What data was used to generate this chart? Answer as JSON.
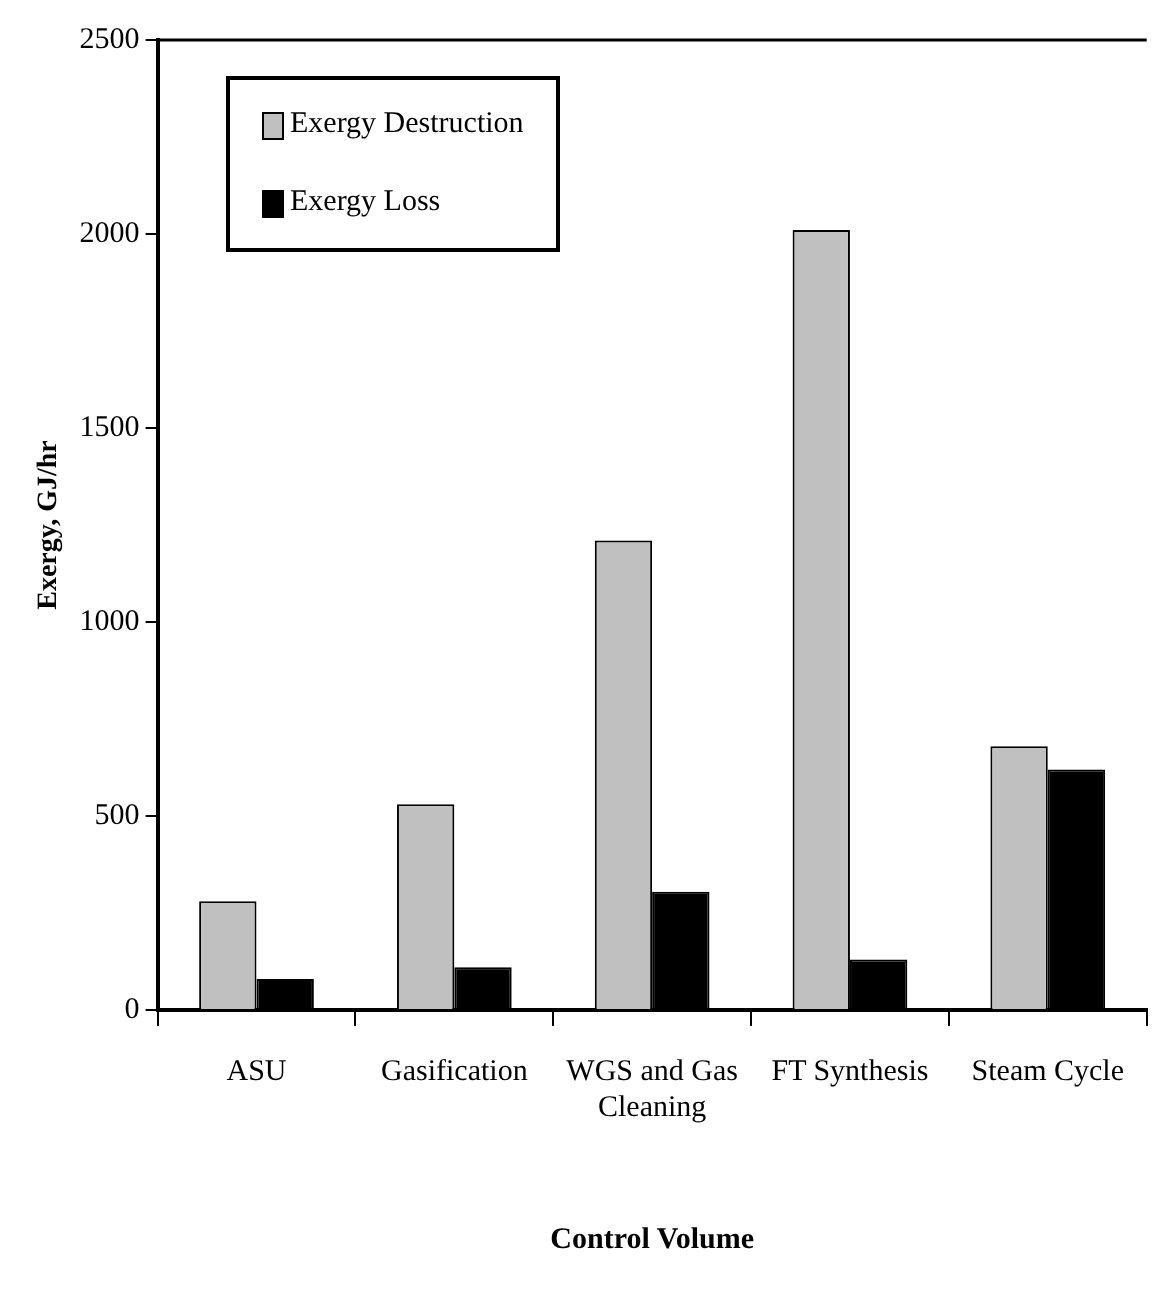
{
  "chart_data": {
    "type": "bar",
    "xlabel": "Control Volume",
    "ylabel": "Exergy, GJ/hr",
    "categories": [
      "ASU",
      "Gasification",
      "WGS and Gas Cleaning",
      "FT Synthesis",
      "Steam Cycle"
    ],
    "series": [
      {
        "name": "Exergy Destruction",
        "color": "#c0c0c0",
        "values": [
          280,
          530,
          1210,
          2010,
          680
        ]
      },
      {
        "name": "Exergy Loss",
        "color": "#000000",
        "values": [
          80,
          110,
          305,
          130,
          620
        ]
      }
    ],
    "ylim": [
      0,
      2500
    ],
    "yticks": [
      0,
      500,
      1000,
      1500,
      2000,
      2500
    ],
    "grid": false,
    "legend": "top left"
  }
}
